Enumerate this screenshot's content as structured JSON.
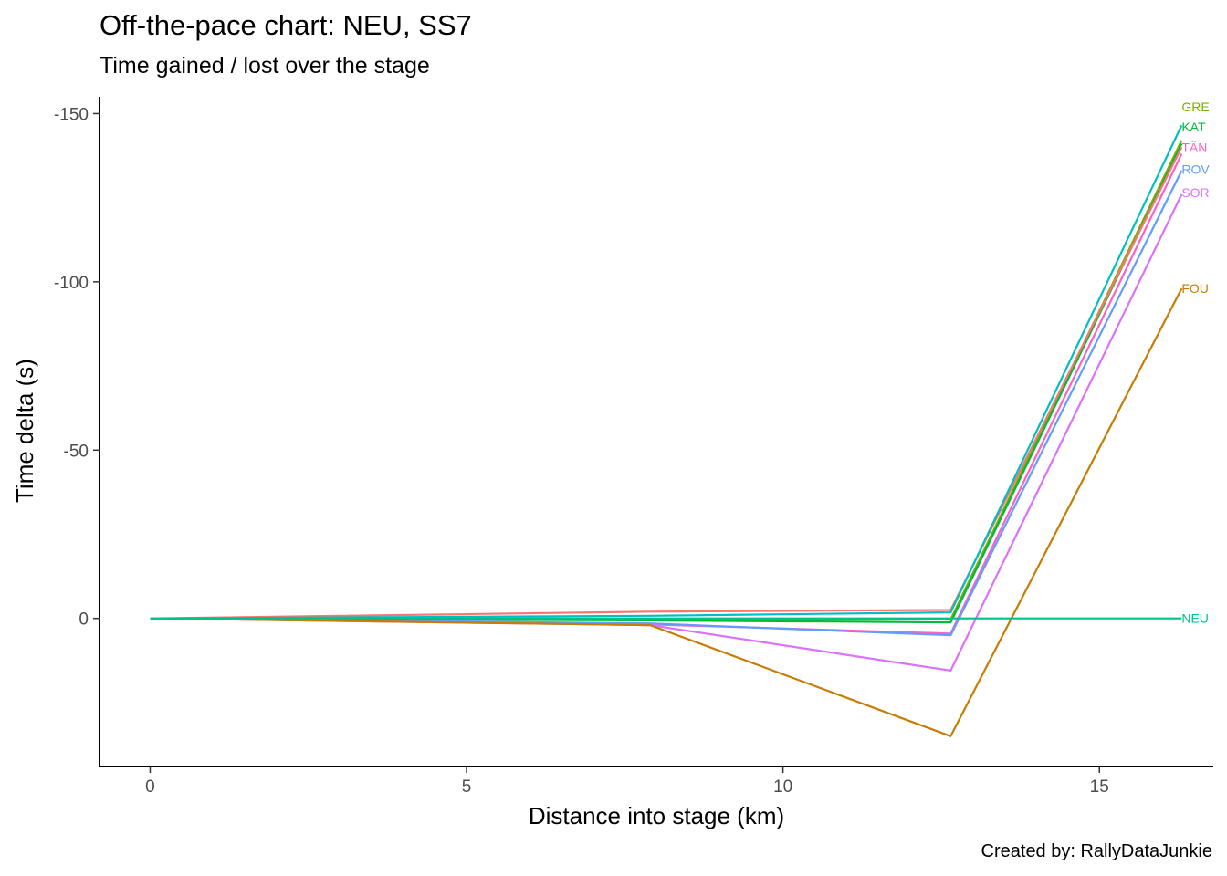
{
  "chart_data": {
    "type": "line",
    "title": "Off-the-pace chart: NEU, SS7",
    "subtitle": "Time gained / lost over the stage",
    "caption": "Created by: RallyDataJunkie",
    "xlabel": "Distance into stage (km)",
    "ylabel": "Time delta (s)",
    "xlim": [
      -0.8,
      16.8
    ],
    "ylim": [
      -155,
      44
    ],
    "y_reversed": true,
    "x_ticks": [
      0,
      5,
      10,
      15
    ],
    "y_ticks": [
      -150,
      -100,
      -50,
      0
    ],
    "grid": false,
    "legend": "none (labels at line ends)",
    "x": [
      0,
      7.9,
      12.65,
      16.3
    ],
    "series": [
      {
        "name": "GRE",
        "color": "#7CAE00",
        "values": [
          0,
          0.5,
          0.3,
          -142
        ]
      },
      {
        "name": "KAT",
        "color": "#00BA38",
        "values": [
          0,
          0.6,
          1.2,
          -141
        ]
      },
      {
        "name": "TÄN",
        "color": "#F8766D",
        "values": [
          0,
          -2.0,
          -2.5,
          -140
        ]
      },
      {
        "name": "TÄN",
        "color": "#FF61C3",
        "values": [
          0,
          1.8,
          4.5,
          -138
        ]
      },
      {
        "name": "ROV",
        "color": "#619CFF",
        "values": [
          0,
          1.5,
          5.0,
          -133
        ]
      },
      {
        "name": "SOR",
        "color": "#DB72FB",
        "values": [
          0,
          2.0,
          15.5,
          -126
        ]
      },
      {
        "name": "FOU",
        "color": "#C77C02",
        "values": [
          0,
          2.0,
          35.0,
          -98
        ]
      },
      {
        "name": "",
        "color": "#00BFC4",
        "values": [
          0,
          -0.8,
          -1.8,
          -146.5
        ]
      },
      {
        "name": "NEU",
        "color": "#00C08B",
        "values": [
          0,
          0,
          0,
          0
        ]
      }
    ],
    "end_labels": [
      {
        "text": "GRE",
        "color": "#7CAE00",
        "y": -152
      },
      {
        "text": "KAT",
        "color": "#00BA38",
        "y": -146
      },
      {
        "text": "TÄN",
        "color": "#FF61C3",
        "y": -140
      },
      {
        "text": "ROV",
        "color": "#619CFF",
        "y": -133.5
      },
      {
        "text": "SOR",
        "color": "#DB72FB",
        "y": -126.5
      },
      {
        "text": "FOU",
        "color": "#C77C02",
        "y": -98
      },
      {
        "text": "NEU",
        "color": "#00C08B",
        "y": 0
      }
    ]
  }
}
